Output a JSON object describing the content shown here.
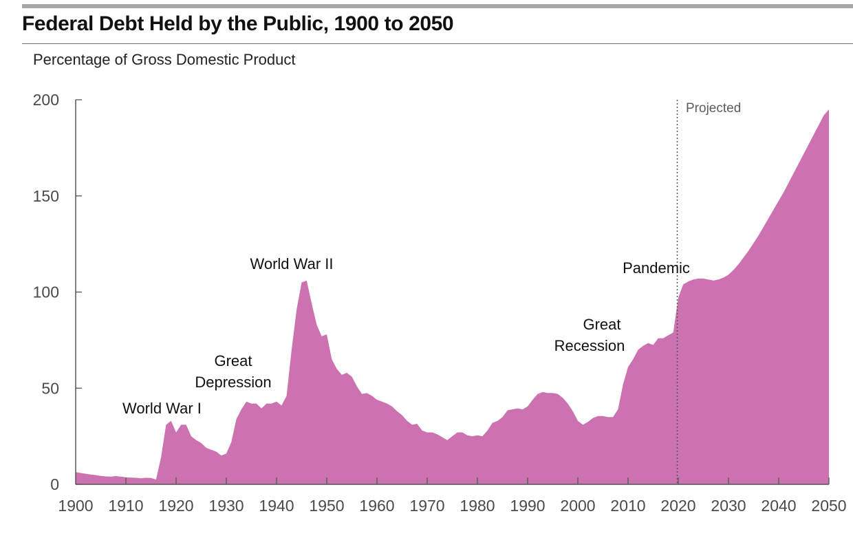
{
  "header": {
    "title": "Federal Debt Held by the Public, 1900 to 2050",
    "subtitle": "Percentage of Gross Domestic Product"
  },
  "colors": {
    "area_fill": "#cd72b1",
    "axis": "#555555",
    "top_bar": "#a6a6a6",
    "projection_line": "#555555"
  },
  "chart_data": {
    "type": "area",
    "title": "Federal Debt Held by the Public, 1900 to 2050",
    "subtitle": "Percentage of Gross Domestic Product",
    "xlabel": "",
    "ylabel": "Percentage of Gross Domestic Product",
    "xlim": [
      1900,
      2050
    ],
    "ylim": [
      0,
      200
    ],
    "grid": false,
    "legend": "none",
    "x_ticks": [
      1900,
      1910,
      1920,
      1930,
      1940,
      1950,
      1960,
      1970,
      1980,
      1990,
      2000,
      2010,
      2020,
      2030,
      2040,
      2050
    ],
    "x_tick_labels": [
      "1900",
      "1910",
      "1920",
      "1930",
      "1940",
      "1950",
      "1960",
      "1970",
      "1980",
      "1990",
      "2000",
      "2010",
      "2020",
      "2030",
      "2040",
      "2050"
    ],
    "y_ticks": [
      0,
      50,
      100,
      150,
      200
    ],
    "y_tick_labels": [
      "0",
      "50",
      "100",
      "150",
      "200"
    ],
    "series": [
      {
        "name": "Federal debt held by the public (% of GDP)",
        "x": [
          1900,
          1901,
          1902,
          1903,
          1904,
          1905,
          1906,
          1907,
          1908,
          1909,
          1910,
          1911,
          1912,
          1913,
          1914,
          1915,
          1916,
          1917,
          1918,
          1919,
          1920,
          1921,
          1922,
          1923,
          1924,
          1925,
          1926,
          1927,
          1928,
          1929,
          1930,
          1931,
          1932,
          1933,
          1934,
          1935,
          1936,
          1937,
          1938,
          1939,
          1940,
          1941,
          1942,
          1943,
          1944,
          1945,
          1946,
          1947,
          1948,
          1949,
          1950,
          1951,
          1952,
          1953,
          1954,
          1955,
          1956,
          1957,
          1958,
          1959,
          1960,
          1961,
          1962,
          1963,
          1964,
          1965,
          1966,
          1967,
          1968,
          1969,
          1970,
          1971,
          1972,
          1973,
          1974,
          1975,
          1976,
          1977,
          1978,
          1979,
          1980,
          1981,
          1982,
          1983,
          1984,
          1985,
          1986,
          1987,
          1988,
          1989,
          1990,
          1991,
          1992,
          1993,
          1994,
          1995,
          1996,
          1997,
          1998,
          1999,
          2000,
          2001,
          2002,
          2003,
          2004,
          2005,
          2006,
          2007,
          2008,
          2009,
          2010,
          2011,
          2012,
          2013,
          2014,
          2015,
          2016,
          2017,
          2018,
          2019,
          2020,
          2021,
          2022,
          2023,
          2024,
          2025,
          2026,
          2027,
          2028,
          2029,
          2030,
          2031,
          2032,
          2033,
          2034,
          2035,
          2036,
          2037,
          2038,
          2039,
          2040,
          2041,
          2042,
          2043,
          2044,
          2045,
          2046,
          2047,
          2048,
          2049,
          2050
        ],
        "values": [
          6.4,
          5.9,
          5.5,
          5.1,
          4.8,
          4.4,
          4.1,
          4.0,
          4.3,
          4.0,
          3.7,
          3.5,
          3.4,
          3.2,
          3.4,
          3.3,
          2.5,
          14.0,
          31.0,
          33.0,
          27.0,
          31.0,
          31.0,
          25.0,
          23.0,
          21.5,
          19.0,
          18.0,
          17.0,
          15.0,
          16.0,
          22.0,
          34.0,
          39.0,
          43.0,
          42.0,
          42.0,
          39.5,
          42.0,
          42.0,
          43.0,
          41.0,
          46.0,
          70.0,
          91.0,
          105.0,
          106.0,
          94.0,
          83.0,
          77.0,
          78.0,
          65.0,
          60.0,
          57.0,
          58.0,
          56.0,
          51.0,
          47.0,
          47.5,
          46.0,
          44.0,
          43.0,
          42.0,
          40.5,
          38.0,
          36.0,
          33.0,
          31.0,
          31.5,
          28.0,
          27.0,
          27.0,
          26.0,
          24.5,
          23.0,
          25.0,
          27.0,
          27.0,
          25.5,
          25.0,
          25.5,
          25.0,
          28.0,
          32.0,
          33.0,
          35.0,
          38.5,
          39.0,
          39.5,
          39.0,
          40.5,
          44.0,
          47.0,
          48.0,
          47.5,
          47.5,
          47.0,
          45.0,
          42.0,
          38.0,
          33.0,
          31.0,
          32.5,
          34.5,
          35.5,
          35.5,
          35.0,
          35.0,
          39.0,
          52.0,
          61.0,
          65.0,
          70.0,
          72.0,
          73.5,
          72.5,
          76.0,
          76.0,
          77.5,
          79.0,
          97.0,
          104.0,
          105.5,
          106.5,
          107.0,
          107.0,
          106.5,
          106.0,
          106.5,
          107.5,
          109.0,
          111.5,
          114.5,
          118.0,
          121.5,
          125.5,
          129.5,
          134.0,
          138.5,
          143.0,
          147.5,
          152.0,
          157.0,
          162.0,
          167.0,
          172.0,
          177.0,
          182.0,
          187.0,
          192.0,
          195.0
        ]
      }
    ],
    "projection_start": 2020,
    "annotations": [
      {
        "label": "World War I",
        "x": 1919
      },
      {
        "label": "Great Depression",
        "x": 1933
      },
      {
        "label": "World War II",
        "x": 1945
      },
      {
        "label": "Great Recession",
        "x": 2009
      },
      {
        "label": "Pandemic",
        "x": 2020
      },
      {
        "label": "Projected",
        "x": 2021
      }
    ]
  },
  "labels": {
    "ww1": "World War I",
    "great_depression_line1": "Great",
    "great_depression_line2": "Depression",
    "ww2": "World War II",
    "great_recession_line1": "Great",
    "great_recession_line2": "Recession",
    "pandemic": "Pandemic",
    "projected": "Projected"
  }
}
